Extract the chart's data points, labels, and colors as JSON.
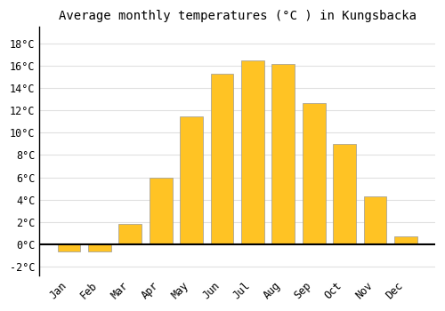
{
  "title": "Average monthly temperatures (°C ) in Kungsbacka",
  "months": [
    "Jan",
    "Feb",
    "Mar",
    "Apr",
    "May",
    "Jun",
    "Jul",
    "Aug",
    "Sep",
    "Oct",
    "Nov",
    "Dec"
  ],
  "values": [
    -0.7,
    -0.7,
    1.8,
    6.0,
    11.5,
    15.3,
    16.5,
    16.2,
    12.7,
    9.0,
    4.3,
    0.7
  ],
  "bar_color": "#FFC324",
  "bar_edge_color": "#999999",
  "ylim": [
    -2.8,
    19.5
  ],
  "yticks": [
    -2,
    0,
    2,
    4,
    6,
    8,
    10,
    12,
    14,
    16,
    18
  ],
  "background_color": "#ffffff",
  "plot_bg_color": "#ffffff",
  "grid_color": "#e0e0e0",
  "title_fontsize": 10,
  "tick_fontsize": 8.5
}
